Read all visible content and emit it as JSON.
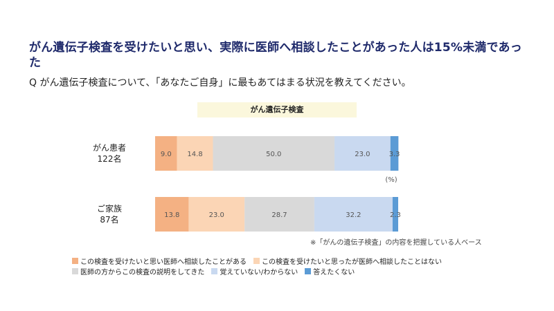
{
  "headline": "がん遺伝子検査を受けたいと思い、実際に医師へ相談したことがあった人は15%未満であった",
  "question": "Q がん遺伝子検査について、「あなたご自身」に最もあてはまる状況を教えてください。",
  "chart_label": "がん遺伝子検査",
  "note": "※「がんの遺伝子検査」の内容を把握している人ベース",
  "chart_data": {
    "type": "bar",
    "orientation": "horizontal-stacked-100",
    "title": "がん遺伝子検査",
    "unit": "(%)",
    "categories": [
      {
        "name": "がん患者",
        "n": "122名"
      },
      {
        "name": "ご家族",
        "n": "87名"
      }
    ],
    "series": [
      {
        "name": "この検査を受けたいと思い医師へ相談したことがある",
        "color": "#f4b183",
        "values": [
          9.0,
          13.8
        ]
      },
      {
        "name": "この検査を受けたいと思ったが医師へ相談したことはない",
        "color": "#fbd5b5",
        "values": [
          14.8,
          23.0
        ]
      },
      {
        "name": "医師の方からこの検査の説明をしてきた",
        "color": "#d9d9d9",
        "values": [
          50.0,
          28.7
        ]
      },
      {
        "name": "覚えていない/わからない",
        "color": "#c9d9f0",
        "values": [
          23.0,
          32.2
        ]
      },
      {
        "name": "答えたくない",
        "color": "#5b9bd5",
        "values": [
          3.3,
          2.3
        ]
      }
    ],
    "xlim": [
      0,
      100
    ],
    "legend_position": "bottom"
  }
}
